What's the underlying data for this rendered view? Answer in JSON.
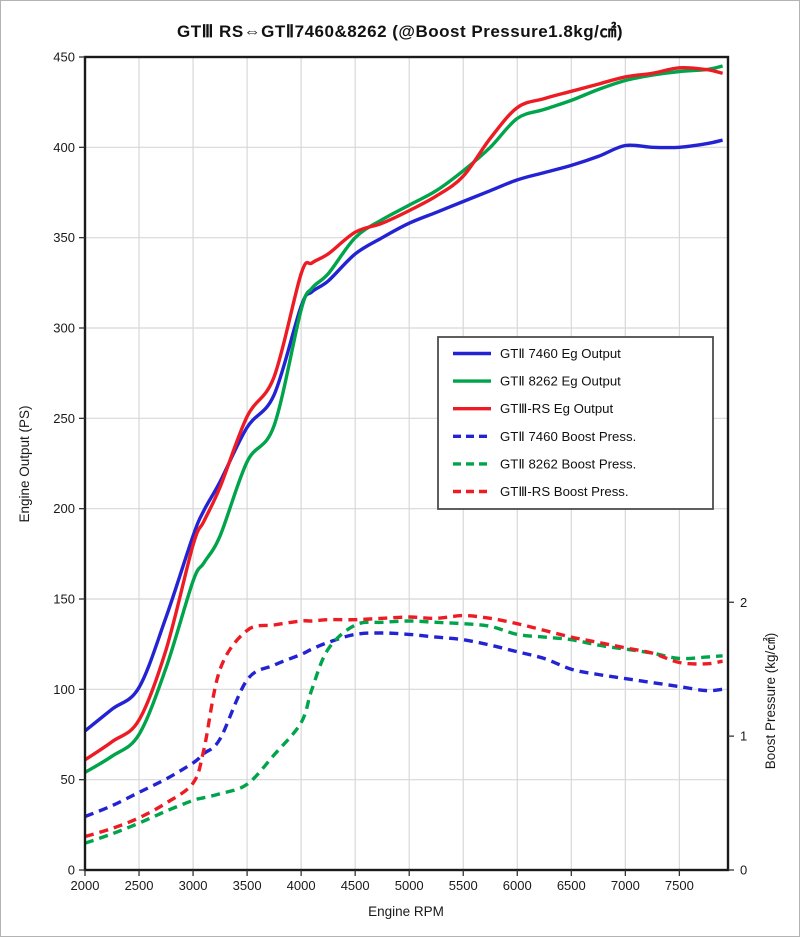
{
  "figure": {
    "title": "GTⅢ RS⇔GTⅡ7460&8262 (@Boost Pressure1.8kg/㎠)"
  },
  "chart_data": {
    "type": "line",
    "title": "GTⅢ RS⇔GTⅡ7460&8262 (@Boost Pressure1.8kg/㎠)",
    "xlabel": "Engine RPM",
    "ylabel_left": "Engine Output (PS)",
    "ylabel_right": "Boost Pressure (kg/㎠)",
    "xlim": [
      2000,
      7950
    ],
    "x_ticks": [
      2000,
      2500,
      3000,
      3500,
      4000,
      4500,
      5000,
      5500,
      6000,
      6500,
      7000,
      7500
    ],
    "ylim_left": [
      0,
      450
    ],
    "y_ticks_left": [
      0,
      50,
      100,
      150,
      200,
      250,
      300,
      350,
      400,
      450
    ],
    "ylim_right_kg": [
      0,
      6.07
    ],
    "y_ticks_right": [
      0,
      1,
      2
    ],
    "ps_per_kg": 74.1,
    "grid": true,
    "legend_position": "center-right",
    "x": [
      2000,
      2250,
      2500,
      2750,
      3000,
      3100,
      3250,
      3500,
      3750,
      4000,
      4100,
      4250,
      4500,
      4750,
      5000,
      5250,
      5500,
      5750,
      6000,
      6250,
      6500,
      6750,
      7000,
      7250,
      7500,
      7750,
      7900
    ],
    "series": [
      {
        "name": "GTⅡ 7460 Eg Output",
        "axis": "left",
        "color": "#2323d3",
        "style": "solid",
        "values": [
          77,
          89,
          101,
          140,
          185,
          199,
          215,
          245,
          263,
          312,
          320,
          326,
          341,
          350,
          358,
          364,
          370,
          376,
          382,
          386,
          390,
          395,
          401,
          400,
          400,
          402,
          404
        ]
      },
      {
        "name": "GTⅡ 8262 Eg Output",
        "axis": "left",
        "color": "#00a44a",
        "style": "solid",
        "values": [
          54,
          63,
          75,
          112,
          160,
          170,
          185,
          226,
          246,
          310,
          322,
          330,
          350,
          360,
          368,
          376,
          387,
          400,
          416,
          421,
          426,
          432,
          437,
          440,
          442,
          443,
          445
        ]
      },
      {
        "name": "GTⅢ-RS Eg Output",
        "axis": "left",
        "color": "#ed1c24",
        "style": "solid",
        "values": [
          61,
          71,
          83,
          122,
          180,
          193,
          212,
          251,
          273,
          330,
          336,
          341,
          353,
          358,
          365,
          373,
          384,
          405,
          422,
          427,
          431,
          435,
          439,
          441,
          444,
          443,
          441
        ]
      },
      {
        "name": "GTⅡ 7460 Boost Press.",
        "axis": "right",
        "color": "#2323d3",
        "style": "dashed",
        "values": [
          0.4,
          0.48,
          0.58,
          0.68,
          0.8,
          0.87,
          0.98,
          1.42,
          1.53,
          1.61,
          1.65,
          1.7,
          1.76,
          1.77,
          1.76,
          1.74,
          1.72,
          1.68,
          1.63,
          1.58,
          1.5,
          1.46,
          1.43,
          1.4,
          1.37,
          1.34,
          1.35
        ]
      },
      {
        "name": "GTⅡ 8262 Boost Press.",
        "axis": "right",
        "color": "#00a44a",
        "style": "dashed",
        "values": [
          0.2,
          0.27,
          0.35,
          0.44,
          0.52,
          0.54,
          0.57,
          0.64,
          0.86,
          1.1,
          1.35,
          1.65,
          1.83,
          1.85,
          1.86,
          1.85,
          1.84,
          1.82,
          1.76,
          1.74,
          1.72,
          1.68,
          1.65,
          1.62,
          1.58,
          1.59,
          1.6
        ]
      },
      {
        "name": "GTⅢ-RS Boost Press.",
        "axis": "right",
        "color": "#ed1c24",
        "style": "dashed",
        "values": [
          0.25,
          0.31,
          0.39,
          0.5,
          0.65,
          0.9,
          1.5,
          1.79,
          1.83,
          1.86,
          1.86,
          1.87,
          1.87,
          1.88,
          1.89,
          1.88,
          1.9,
          1.88,
          1.84,
          1.79,
          1.74,
          1.7,
          1.66,
          1.62,
          1.55,
          1.54,
          1.56
        ]
      }
    ]
  }
}
